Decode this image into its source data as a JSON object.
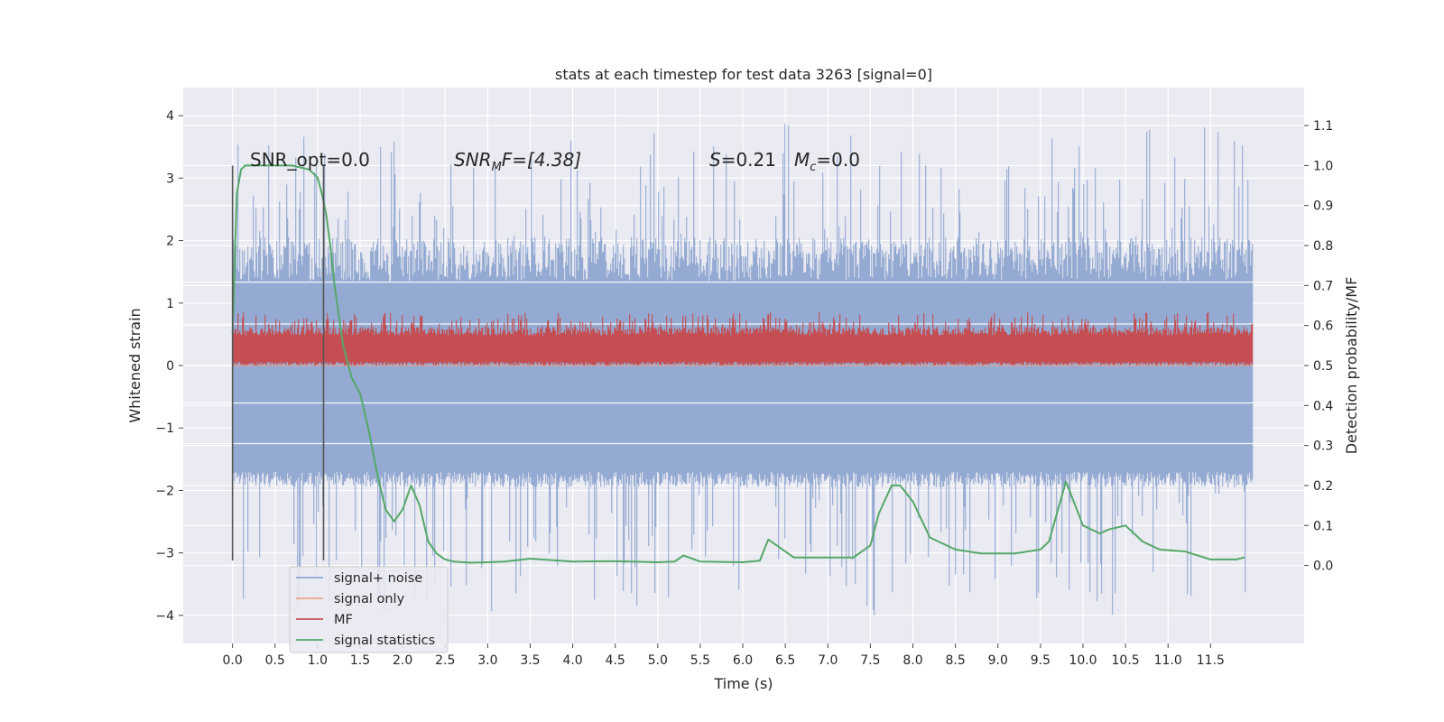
{
  "chart_data": {
    "type": "line",
    "title": "stats at each timestep for test data 3263 [signal=0]",
    "xlabel": "Time (s)",
    "ylabel": "Whitened strain",
    "y2label": "Detection probability/MF",
    "xlim": [
      -0.58,
      12.6
    ],
    "ylim": [
      -4.45,
      4.45
    ],
    "y2lim": [
      -0.195,
      1.195
    ],
    "x_ticks": [
      "0.0",
      "0.5",
      "1.0",
      "1.5",
      "2.0",
      "2.5",
      "3.0",
      "3.5",
      "4.0",
      "4.5",
      "5.0",
      "5.5",
      "6.0",
      "6.5",
      "7.0",
      "7.5",
      "8.0",
      "8.5",
      "9.0",
      "9.5",
      "10.0",
      "10.5",
      "11.0",
      "11.5"
    ],
    "y_ticks": [
      "4",
      "3",
      "2",
      "1",
      "0",
      "−1",
      "−2",
      "−3",
      "−4"
    ],
    "y2_ticks": [
      "1.1",
      "1.0",
      "0.9",
      "0.8",
      "0.7",
      "0.6",
      "0.5",
      "0.4",
      "0.3",
      "0.2",
      "0.1",
      "0.0"
    ],
    "grid": true,
    "legend_position": "lower-left",
    "annotations": {
      "snr_opt": "SNR_opt=0.0",
      "snr_mf_sym": "SNR",
      "snr_mf_sub": "M",
      "snr_mf_rest": "F=[4.38]",
      "s_sym": "S",
      "s_rest": "=0.21",
      "mc_sym": "M",
      "mc_sub": "c",
      "mc_rest": "=0.0"
    },
    "noise_band": {
      "t_start": 0.0,
      "t_end": 12.0,
      "core_low": -1.7,
      "core_high": 1.35,
      "peak_min": -4.0,
      "peak_max": 3.9
    },
    "mf_band": {
      "t_start": 0.0,
      "t_end": 12.0,
      "low": 0.0,
      "high": 0.6,
      "peak_max": 0.85
    },
    "vertical_lines": [
      {
        "x": 0.0,
        "y_from": -3.12,
        "y_to": 3.2
      },
      {
        "x": 1.07,
        "y_from": -3.12,
        "y_to": 3.2
      }
    ],
    "series": [
      {
        "name": "signal+ noise",
        "color": "#8fa6d0"
      },
      {
        "name": "signal only",
        "color": "#e8a58a"
      },
      {
        "name": "MF",
        "color": "#c44e52"
      },
      {
        "name": "signal statistics",
        "color": "#55a868",
        "x": [
          0.0,
          0.05,
          0.1,
          0.15,
          0.2,
          0.3,
          0.5,
          0.7,
          0.9,
          1.0,
          1.05,
          1.1,
          1.15,
          1.2,
          1.3,
          1.4,
          1.5,
          1.6,
          1.7,
          1.8,
          1.9,
          2.0,
          2.1,
          2.2,
          2.3,
          2.4,
          2.5,
          2.6,
          2.8,
          3.0,
          3.2,
          3.5,
          4.0,
          4.5,
          5.0,
          5.2,
          5.3,
          5.5,
          6.0,
          6.2,
          6.3,
          6.4,
          6.6,
          7.0,
          7.3,
          7.5,
          7.6,
          7.75,
          7.85,
          8.0,
          8.2,
          8.5,
          8.8,
          9.0,
          9.2,
          9.5,
          9.6,
          9.8,
          10.0,
          10.2,
          10.3,
          10.5,
          10.7,
          10.9,
          11.2,
          11.5,
          11.8,
          11.9
        ],
        "y": [
          0.58,
          0.93,
          0.99,
          1.0,
          1.0,
          1.0,
          1.0,
          1.0,
          0.99,
          0.97,
          0.93,
          0.88,
          0.8,
          0.7,
          0.55,
          0.47,
          0.43,
          0.34,
          0.23,
          0.14,
          0.11,
          0.14,
          0.2,
          0.15,
          0.06,
          0.03,
          0.015,
          0.01,
          0.007,
          0.008,
          0.01,
          0.017,
          0.01,
          0.011,
          0.008,
          0.01,
          0.025,
          0.01,
          0.008,
          0.012,
          0.065,
          0.05,
          0.02,
          0.02,
          0.02,
          0.05,
          0.13,
          0.2,
          0.2,
          0.16,
          0.07,
          0.04,
          0.03,
          0.03,
          0.03,
          0.04,
          0.06,
          0.21,
          0.1,
          0.08,
          0.09,
          0.1,
          0.06,
          0.04,
          0.035,
          0.015,
          0.015,
          0.02
        ]
      }
    ]
  }
}
